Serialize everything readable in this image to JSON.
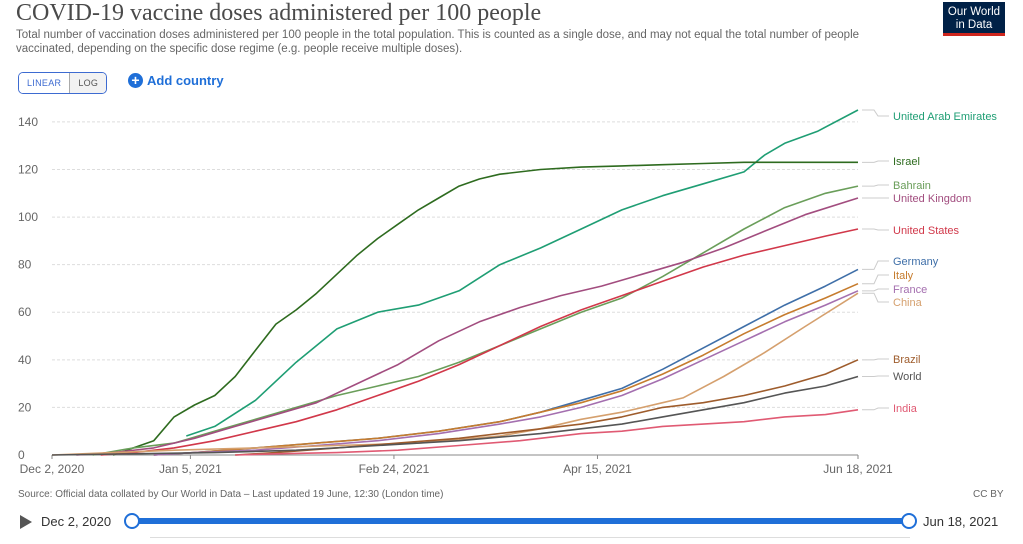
{
  "header": {
    "title": "COVID-19 vaccine doses administered per 100 people",
    "subtitle": "Total number of vaccination doses administered per 100 people in the total population. This is counted as a single dose, and may not equal the total number of people vaccinated, depending on the specific dose regime (e.g. people receive multiple doses).",
    "logo_line1": "Our World",
    "logo_line2": "in Data"
  },
  "controls": {
    "linear_label": "LINEAR",
    "log_label": "LOG",
    "add_country_label": "Add country"
  },
  "footer": {
    "source": "Source: Official data collated by Our World in Data – Last updated 19 June, 12:30 (London time)",
    "license": "CC BY"
  },
  "timeline": {
    "start_label": "Dec 2, 2020",
    "end_label": "Jun 18, 2021"
  },
  "chart_data": {
    "type": "line",
    "title": "COVID-19 vaccine doses administered per 100 people",
    "xlabel": "",
    "ylabel": "",
    "x_unit": "days since Dec 2, 2020",
    "xlim": [
      0,
      198
    ],
    "ylim": [
      0,
      145
    ],
    "y_ticks": [
      0,
      20,
      40,
      60,
      80,
      100,
      120,
      140
    ],
    "x_ticks": [
      {
        "day": 0,
        "label": "Dec 2, 2020"
      },
      {
        "day": 34,
        "label": "Jan 5, 2021"
      },
      {
        "day": 84,
        "label": "Feb 24, 2021"
      },
      {
        "day": 134,
        "label": "Apr 15, 2021"
      },
      {
        "day": 198,
        "label": "Jun 18, 2021"
      }
    ],
    "grid": true,
    "series": [
      {
        "name": "United Arab Emirates",
        "color": "#1f9e74",
        "label_y": 145,
        "points": [
          [
            33,
            8
          ],
          [
            40,
            12
          ],
          [
            50,
            23
          ],
          [
            60,
            39
          ],
          [
            70,
            53
          ],
          [
            80,
            60
          ],
          [
            90,
            63
          ],
          [
            100,
            69
          ],
          [
            110,
            80
          ],
          [
            120,
            87
          ],
          [
            130,
            95
          ],
          [
            140,
            103
          ],
          [
            150,
            109
          ],
          [
            160,
            114
          ],
          [
            170,
            119
          ],
          [
            175,
            126
          ],
          [
            180,
            131
          ],
          [
            188,
            136
          ],
          [
            198,
            145
          ]
        ]
      },
      {
        "name": "Israel",
        "color": "#2e6b1f",
        "label_y": 123,
        "points": [
          [
            15,
            0
          ],
          [
            20,
            3
          ],
          [
            25,
            6
          ],
          [
            30,
            16
          ],
          [
            35,
            21
          ],
          [
            40,
            25
          ],
          [
            45,
            33
          ],
          [
            50,
            44
          ],
          [
            55,
            55
          ],
          [
            60,
            61
          ],
          [
            65,
            68
          ],
          [
            70,
            76
          ],
          [
            75,
            84
          ],
          [
            80,
            91
          ],
          [
            85,
            97
          ],
          [
            90,
            103
          ],
          [
            95,
            108
          ],
          [
            100,
            113
          ],
          [
            105,
            116
          ],
          [
            110,
            118
          ],
          [
            120,
            120
          ],
          [
            130,
            121
          ],
          [
            140,
            121.5
          ],
          [
            150,
            122
          ],
          [
            160,
            122.5
          ],
          [
            170,
            123
          ],
          [
            198,
            123
          ]
        ]
      },
      {
        "name": "Bahrain",
        "color": "#6a9e5a",
        "label_y": 114,
        "points": [
          [
            10,
            0
          ],
          [
            20,
            3
          ],
          [
            30,
            5
          ],
          [
            40,
            10
          ],
          [
            50,
            15
          ],
          [
            60,
            20
          ],
          [
            70,
            25
          ],
          [
            80,
            29
          ],
          [
            90,
            33
          ],
          [
            100,
            39
          ],
          [
            110,
            46
          ],
          [
            120,
            53
          ],
          [
            130,
            60
          ],
          [
            140,
            66
          ],
          [
            150,
            75
          ],
          [
            160,
            85
          ],
          [
            170,
            95
          ],
          [
            180,
            104
          ],
          [
            190,
            110
          ],
          [
            198,
            113
          ]
        ]
      },
      {
        "name": "United Kingdom",
        "color": "#a24d7f",
        "label_y": 107,
        "points": [
          [
            6,
            0
          ],
          [
            15,
            1
          ],
          [
            25,
            3
          ],
          [
            35,
            7
          ],
          [
            45,
            12
          ],
          [
            55,
            17
          ],
          [
            65,
            22
          ],
          [
            75,
            30
          ],
          [
            85,
            38
          ],
          [
            95,
            48
          ],
          [
            105,
            56
          ],
          [
            115,
            62
          ],
          [
            125,
            67
          ],
          [
            135,
            71
          ],
          [
            145,
            76
          ],
          [
            155,
            81
          ],
          [
            165,
            87
          ],
          [
            175,
            94
          ],
          [
            185,
            101
          ],
          [
            198,
            108
          ]
        ]
      },
      {
        "name": "United States",
        "color": "#d1384a",
        "label_y": 95,
        "points": [
          [
            12,
            0
          ],
          [
            20,
            1
          ],
          [
            30,
            3
          ],
          [
            40,
            6
          ],
          [
            50,
            10
          ],
          [
            60,
            14
          ],
          [
            70,
            19
          ],
          [
            80,
            25
          ],
          [
            90,
            31
          ],
          [
            100,
            38
          ],
          [
            110,
            46
          ],
          [
            120,
            54
          ],
          [
            130,
            61
          ],
          [
            140,
            67
          ],
          [
            150,
            73
          ],
          [
            160,
            79
          ],
          [
            170,
            84
          ],
          [
            180,
            88
          ],
          [
            190,
            92
          ],
          [
            198,
            95
          ]
        ]
      },
      {
        "name": "Germany",
        "color": "#3f6fa8",
        "label_y": 83,
        "points": [
          [
            25,
            0
          ],
          [
            35,
            1
          ],
          [
            50,
            3
          ],
          [
            65,
            5
          ],
          [
            80,
            7
          ],
          [
            95,
            10
          ],
          [
            110,
            14
          ],
          [
            120,
            18
          ],
          [
            130,
            23
          ],
          [
            140,
            28
          ],
          [
            150,
            36
          ],
          [
            160,
            45
          ],
          [
            170,
            54
          ],
          [
            180,
            63
          ],
          [
            190,
            71
          ],
          [
            198,
            78
          ]
        ]
      },
      {
        "name": "Italy",
        "color": "#c67c2e",
        "label_y": 76,
        "points": [
          [
            25,
            0
          ],
          [
            35,
            1
          ],
          [
            50,
            3
          ],
          [
            65,
            5
          ],
          [
            80,
            7
          ],
          [
            95,
            10
          ],
          [
            110,
            14
          ],
          [
            120,
            18
          ],
          [
            130,
            22
          ],
          [
            140,
            27
          ],
          [
            150,
            34
          ],
          [
            160,
            42
          ],
          [
            170,
            51
          ],
          [
            180,
            59
          ],
          [
            190,
            66
          ],
          [
            198,
            72
          ]
        ]
      },
      {
        "name": "France",
        "color": "#a46faf",
        "label_y": 70,
        "points": [
          [
            25,
            0
          ],
          [
            35,
            1
          ],
          [
            50,
            2
          ],
          [
            65,
            4
          ],
          [
            80,
            6
          ],
          [
            95,
            9
          ],
          [
            110,
            13
          ],
          [
            120,
            16
          ],
          [
            130,
            20
          ],
          [
            140,
            25
          ],
          [
            150,
            32
          ],
          [
            160,
            40
          ],
          [
            170,
            48
          ],
          [
            180,
            56
          ],
          [
            190,
            63
          ],
          [
            198,
            69
          ]
        ]
      },
      {
        "name": "China",
        "color": "#d5a06e",
        "label_y": 65,
        "points": [
          [
            0,
            0
          ],
          [
            15,
            1
          ],
          [
            30,
            2
          ],
          [
            50,
            3
          ],
          [
            70,
            4
          ],
          [
            90,
            5
          ],
          [
            110,
            8
          ],
          [
            120,
            11
          ],
          [
            130,
            15
          ],
          [
            140,
            18
          ],
          [
            150,
            22
          ],
          [
            155,
            24
          ],
          [
            165,
            33
          ],
          [
            175,
            43
          ],
          [
            185,
            54
          ],
          [
            198,
            68
          ]
        ]
      },
      {
        "name": "Brazil",
        "color": "#9e5c2c",
        "label_y": 40,
        "points": [
          [
            45,
            0
          ],
          [
            55,
            1
          ],
          [
            70,
            3
          ],
          [
            85,
            5
          ],
          [
            100,
            7
          ],
          [
            115,
            10
          ],
          [
            130,
            13
          ],
          [
            140,
            16
          ],
          [
            150,
            20
          ],
          [
            160,
            22
          ],
          [
            170,
            25
          ],
          [
            180,
            29
          ],
          [
            190,
            34
          ],
          [
            198,
            40
          ]
        ]
      },
      {
        "name": "World",
        "color": "#555555",
        "label_y": 33,
        "points": [
          [
            0,
            0
          ],
          [
            20,
            0.5
          ],
          [
            40,
            1
          ],
          [
            60,
            2
          ],
          [
            80,
            4
          ],
          [
            100,
            6
          ],
          [
            120,
            9
          ],
          [
            130,
            11
          ],
          [
            140,
            13
          ],
          [
            150,
            16
          ],
          [
            160,
            19
          ],
          [
            170,
            22
          ],
          [
            180,
            26
          ],
          [
            190,
            29
          ],
          [
            198,
            33
          ]
        ]
      },
      {
        "name": "India",
        "color": "#e05a73",
        "label_y": 19,
        "points": [
          [
            45,
            0
          ],
          [
            55,
            0.5
          ],
          [
            70,
            1
          ],
          [
            85,
            2
          ],
          [
            100,
            4
          ],
          [
            115,
            6
          ],
          [
            130,
            9
          ],
          [
            140,
            10
          ],
          [
            150,
            12
          ],
          [
            160,
            13
          ],
          [
            170,
            14
          ],
          [
            180,
            16
          ],
          [
            190,
            17
          ],
          [
            198,
            19
          ]
        ]
      }
    ]
  }
}
